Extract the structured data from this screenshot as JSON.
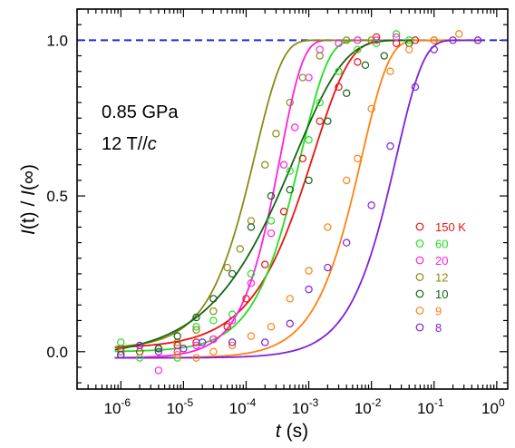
{
  "chart_data": {
    "type": "scatter",
    "x_scale": "log",
    "xlim": [
      2e-07,
      1.5
    ],
    "ylim": [
      -0.12,
      1.1
    ],
    "x_ticks": [
      1e-06,
      1e-05,
      0.0001,
      0.001,
      0.01,
      0.1,
      1
    ],
    "x_tick_labels": [
      {
        "base": "10",
        "exp": "-6"
      },
      {
        "base": "10",
        "exp": "-5"
      },
      {
        "base": "10",
        "exp": "-4"
      },
      {
        "base": "10",
        "exp": "-3"
      },
      {
        "base": "10",
        "exp": "-2"
      },
      {
        "base": "10",
        "exp": "-1"
      },
      {
        "base": "10",
        "exp": "0"
      }
    ],
    "y_ticks": [
      0.0,
      0.5,
      1.0
    ],
    "y_tick_labels": [
      "0.0",
      "0.5",
      "1.0"
    ],
    "xlabel": {
      "italic": "t",
      "plain": " (s)"
    },
    "ylabel": {
      "p1": "I",
      "p2": "(t)  /  ",
      "p3": "I",
      "p4": "(∞)"
    },
    "reference_line": {
      "y": 1.0,
      "color": "#1f2fd6",
      "style": "dashed"
    },
    "annotations": [
      "0.85 GPa",
      "12 T//",
      "c"
    ],
    "legend_position": "right-center",
    "series": [
      {
        "name": "150 K",
        "color": "#ee1111",
        "tau": 0.0012,
        "beta": 0.75,
        "start": 0.01,
        "points": [
          [
            1e-06,
            0.01
          ],
          [
            2e-06,
            0.0
          ],
          [
            4e-06,
            0.01
          ],
          [
            8e-06,
            0.02
          ],
          [
            1.6e-05,
            0.03
          ],
          [
            3e-05,
            0.04
          ],
          [
            5e-05,
            0.08
          ],
          [
            0.0001,
            0.17
          ],
          [
            0.0002,
            0.28
          ],
          [
            0.0004,
            0.45
          ],
          [
            0.0008,
            0.62
          ],
          [
            0.0015,
            0.74
          ],
          [
            0.003,
            0.85
          ],
          [
            0.006,
            0.93
          ],
          [
            0.012,
            1.01
          ],
          [
            0.025,
            0.99
          ],
          [
            0.05,
            1.0
          ]
        ]
      },
      {
        "name": "60",
        "color": "#22e022",
        "tau": 0.00075,
        "beta": 1.0,
        "start": 0.0,
        "points": [
          [
            1e-06,
            0.03
          ],
          [
            2e-06,
            -0.02
          ],
          [
            4e-06,
            0.01
          ],
          [
            8e-06,
            -0.02
          ],
          [
            1.6e-05,
            0.08
          ],
          [
            3e-05,
            0.1
          ],
          [
            6e-05,
            0.12
          ],
          [
            0.00012,
            0.25
          ],
          [
            0.00025,
            0.42
          ],
          [
            0.0005,
            0.58
          ],
          [
            0.001,
            0.68
          ],
          [
            0.0015,
            0.8
          ],
          [
            0.003,
            0.9
          ],
          [
            0.006,
            0.97
          ],
          [
            0.012,
            0.99
          ],
          [
            0.025,
            1.02
          ],
          [
            0.04,
            1.0
          ]
        ]
      },
      {
        "name": "20",
        "color": "#ff20e0",
        "tau": 0.00035,
        "beta": 1.2,
        "start": -0.02,
        "points": [
          [
            4e-06,
            -0.06
          ],
          [
            8e-06,
            0.0
          ],
          [
            1.6e-05,
            0.02
          ],
          [
            3e-05,
            0.04
          ],
          [
            6e-05,
            0.1
          ],
          [
            0.00012,
            0.22
          ],
          [
            0.00025,
            0.38
          ],
          [
            0.0004,
            0.6
          ],
          [
            0.0006,
            0.72
          ],
          [
            0.001,
            0.88
          ],
          [
            0.0015,
            0.97
          ],
          [
            0.003,
            0.99
          ],
          [
            0.006,
            1.0
          ],
          [
            0.012,
            1.0
          ],
          [
            0.025,
            1.01
          ]
        ]
      },
      {
        "name": "12",
        "color": "#8a8a18",
        "tau": 0.00014,
        "beta": 1.0,
        "start": 0.01,
        "points": [
          [
            1e-06,
            0.0
          ],
          [
            4e-06,
            0.01
          ],
          [
            8e-06,
            0.03
          ],
          [
            1.6e-05,
            0.07
          ],
          [
            3e-05,
            0.13
          ],
          [
            5e-05,
            0.27
          ],
          [
            8e-05,
            0.33
          ],
          [
            0.00012,
            0.42
          ],
          [
            0.0002,
            0.6
          ],
          [
            0.0003,
            0.7
          ],
          [
            0.0005,
            0.8
          ],
          [
            0.0008,
            0.88
          ],
          [
            0.0015,
            0.95
          ],
          [
            0.004,
            1.0
          ],
          [
            0.01,
            1.0
          ]
        ]
      },
      {
        "name": "10",
        "color": "#146414",
        "tau": 0.0006,
        "beta": 0.55,
        "start": -0.02,
        "points": [
          [
            1e-06,
            -0.01
          ],
          [
            4e-06,
            0.01
          ],
          [
            8e-06,
            0.05
          ],
          [
            1.6e-05,
            0.11
          ],
          [
            3e-05,
            0.17
          ],
          [
            6e-05,
            0.25
          ],
          [
            0.00012,
            0.4
          ],
          [
            0.00025,
            0.5
          ],
          [
            0.0005,
            0.52
          ],
          [
            0.001,
            0.55
          ],
          [
            0.002,
            0.74
          ],
          [
            0.004,
            0.83
          ],
          [
            0.008,
            0.92
          ],
          [
            0.016,
            0.95
          ],
          [
            0.04,
            0.99
          ],
          [
            0.1,
            1.0
          ]
        ]
      },
      {
        "name": "9",
        "color": "#ff8010",
        "tau": 0.007,
        "beta": 1.0,
        "start": -0.02,
        "points": [
          [
            8e-06,
            -0.01
          ],
          [
            1.6e-05,
            -0.02
          ],
          [
            3e-05,
            0.0
          ],
          [
            6e-05,
            0.02
          ],
          [
            0.00012,
            0.05
          ],
          [
            0.00025,
            0.08
          ],
          [
            0.0005,
            0.17
          ],
          [
            0.001,
            0.26
          ],
          [
            0.002,
            0.4
          ],
          [
            0.004,
            0.55
          ],
          [
            0.006,
            0.62
          ],
          [
            0.01,
            0.78
          ],
          [
            0.02,
            0.9
          ],
          [
            0.04,
            0.97
          ],
          [
            0.1,
            1.0
          ],
          [
            0.25,
            1.02
          ],
          [
            0.5,
            1.0
          ]
        ]
      },
      {
        "name": "8",
        "color": "#8020d8",
        "tau": 0.025,
        "beta": 1.0,
        "start": -0.02,
        "points": [
          [
            1e-06,
            -0.01
          ],
          [
            2e-06,
            0.02
          ],
          [
            4e-06,
            0.0
          ],
          [
            1e-05,
            0.01
          ],
          [
            2e-05,
            0.03
          ],
          [
            6e-05,
            0.03
          ],
          [
            0.0002,
            0.03
          ],
          [
            0.0005,
            0.09
          ],
          [
            0.001,
            0.2
          ],
          [
            0.002,
            0.27
          ],
          [
            0.004,
            0.35
          ],
          [
            0.01,
            0.47
          ],
          [
            0.02,
            0.66
          ],
          [
            0.05,
            0.85
          ],
          [
            0.1,
            0.97
          ],
          [
            0.2,
            1.0
          ],
          [
            0.5,
            1.0
          ]
        ]
      }
    ]
  }
}
